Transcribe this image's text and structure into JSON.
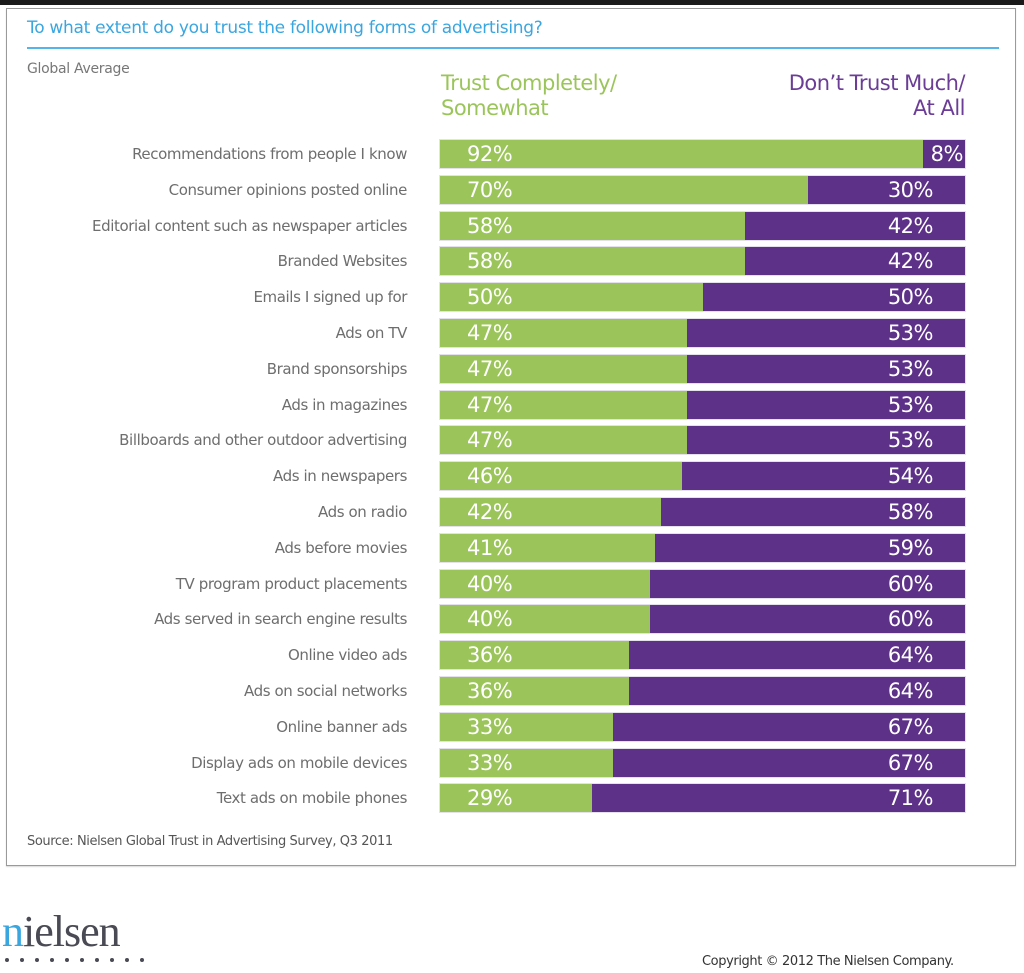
{
  "page": {
    "source": "Source: Nielsen Global Trust in Advertising Survey, Q3 2011",
    "logo_text_first": "n",
    "logo_text_rest": "ielsen",
    "logo_dot_count": 10,
    "copyright": "Copyright © 2012  The Nielsen Company."
  },
  "colors": {
    "title": "#3aa6e0",
    "trust": "#9bc55a",
    "distrust": "#5e3189",
    "distrust_legend": "#6b3d96",
    "label_text": "#6e6e6e"
  },
  "chart_data": {
    "type": "bar",
    "orientation": "horizontal",
    "stacked": true,
    "normalized_to": 100,
    "title": "To what extent do you trust the following forms of advertising?",
    "subtitle": "Global Average",
    "xlabel": "",
    "ylabel": "",
    "xlim": [
      0,
      100
    ],
    "grid": false,
    "legend_placement": "top",
    "legend": {
      "trust_line1": "Trust Completely/",
      "trust_line2": "Somewhat",
      "distrust_line1": "Don’t Trust Much/",
      "distrust_line2": "At All"
    },
    "categories": [
      "Recommendations from people I know",
      "Consumer opinions posted online",
      "Editorial content such as newspaper articles",
      "Branded Websites",
      "Emails I signed up for",
      "Ads on TV",
      "Brand sponsorships",
      "Ads in magazines",
      "Billboards and other outdoor advertising",
      "Ads in newspapers",
      "Ads on radio",
      "Ads before movies",
      "TV program product placements",
      "Ads served in search engine results",
      "Online video ads",
      "Ads on social networks",
      "Online banner ads",
      "Display ads on mobile devices",
      "Text ads on mobile phones"
    ],
    "series": [
      {
        "name": "Trust Completely/Somewhat",
        "color": "#9bc55a",
        "values": [
          92,
          70,
          58,
          58,
          50,
          47,
          47,
          47,
          47,
          46,
          42,
          41,
          40,
          40,
          36,
          36,
          33,
          33,
          29
        ]
      },
      {
        "name": "Don’t Trust Much/At All",
        "color": "#5e3189",
        "values": [
          8,
          30,
          42,
          42,
          50,
          53,
          53,
          53,
          53,
          54,
          58,
          59,
          60,
          60,
          64,
          64,
          67,
          67,
          71
        ]
      }
    ],
    "value_suffix": "%"
  }
}
